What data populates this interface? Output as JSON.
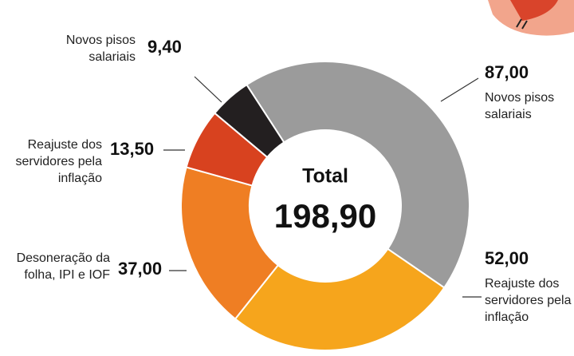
{
  "chart_data": {
    "type": "donut",
    "center_title": "Total",
    "center_value": "198,90",
    "categories": [
      "Novos pisos salariais",
      "Reajuste dos servidores pela inflação",
      "Desoneração da folha, IPI e IOF",
      "Reajuste dos servidores pela inflação",
      "Novos pisos salariais"
    ],
    "values": [
      87.0,
      52.0,
      37.0,
      13.5,
      9.4
    ],
    "value_labels": [
      "87,00",
      "52,00",
      "37,00",
      "13,50",
      "9,40"
    ],
    "colors": [
      "#9b9b9b",
      "#f6a51c",
      "#ef7e23",
      "#d8421f",
      "#231f20"
    ]
  }
}
